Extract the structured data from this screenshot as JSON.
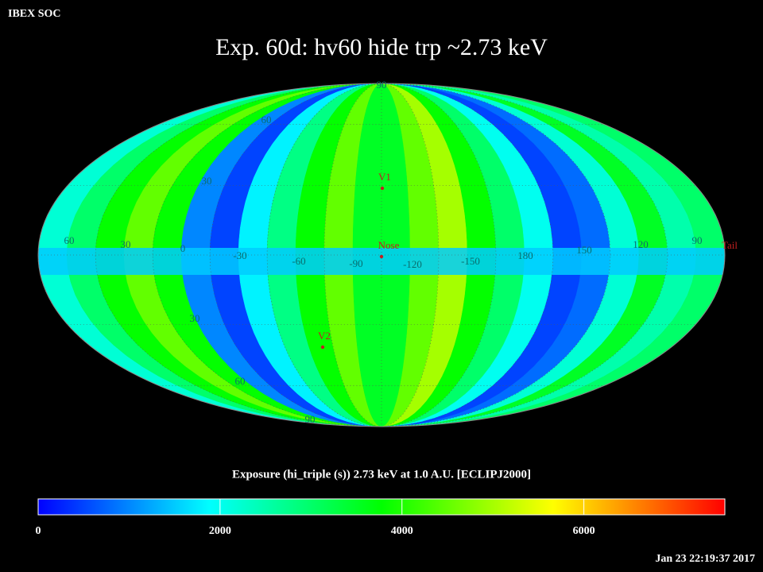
{
  "header": {
    "org": "IBEX SOC",
    "title": "Exp.   60d: hv60 hide trp ~2.73 keV",
    "timestamp": "Jan 23 22:19:37 2017"
  },
  "map": {
    "projection": "mollweide",
    "exposure_bands": [
      2200,
      3000,
      3800,
      4500,
      3800,
      1000,
      500,
      1800,
      2800,
      3800,
      4500,
      3500,
      3500,
      4500,
      5000,
      3800,
      3000,
      2000,
      500,
      800,
      2200,
      3500,
      2500,
      3000
    ],
    "equator_band": 1500,
    "longitude_labels": [
      "60",
      "30",
      "0",
      "-30",
      "-60",
      "-90",
      "-120",
      "-150",
      "180",
      "150",
      "120",
      "90"
    ],
    "latitude_labels": [
      "90",
      "60",
      "30",
      "30",
      "60",
      "90"
    ],
    "markers": [
      "V1",
      "Nose",
      "V2",
      "Tail"
    ]
  },
  "colorbar": {
    "label": "Exposure (hi_triple (s))  2.73 keV at 1.0 A.U. [ECLIPJ2000]",
    "lim": [
      0,
      7550
    ],
    "ticks": [
      0,
      2000,
      4000,
      6000
    ],
    "colormap": [
      "#0000ff",
      "#00ffff",
      "#00ff00",
      "#ffff00",
      "#ff0000"
    ]
  }
}
